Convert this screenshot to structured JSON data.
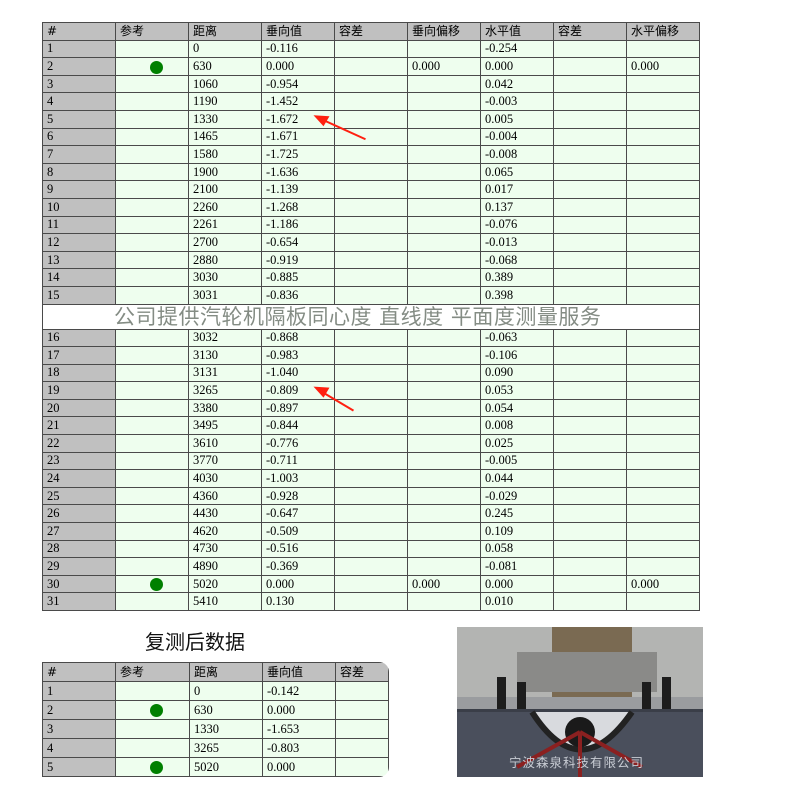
{
  "main_table": {
    "headers": [
      "#",
      "参考",
      "距离",
      "垂向值",
      "容差",
      "垂向偏移",
      "水平值",
      "容差",
      "水平偏移"
    ],
    "rows": [
      {
        "n": "1",
        "ref": false,
        "dist": "0",
        "vert": "-0.116",
        "vtol": "",
        "voff": "",
        "horiz": "-0.254",
        "htol": "",
        "hoff": ""
      },
      {
        "n": "2",
        "ref": true,
        "dist": "630",
        "vert": "0.000",
        "vtol": "",
        "voff": "0.000",
        "horiz": "0.000",
        "htol": "",
        "hoff": "0.000"
      },
      {
        "n": "3",
        "ref": false,
        "dist": "1060",
        "vert": "-0.954",
        "vtol": "",
        "voff": "",
        "horiz": "0.042",
        "htol": "",
        "hoff": ""
      },
      {
        "n": "4",
        "ref": false,
        "dist": "1190",
        "vert": "-1.452",
        "vtol": "",
        "voff": "",
        "horiz": "-0.003",
        "htol": "",
        "hoff": ""
      },
      {
        "n": "5",
        "ref": false,
        "dist": "1330",
        "vert": "-1.672",
        "vtol": "",
        "voff": "",
        "horiz": "0.005",
        "htol": "",
        "hoff": ""
      },
      {
        "n": "6",
        "ref": false,
        "dist": "1465",
        "vert": "-1.671",
        "vtol": "",
        "voff": "",
        "horiz": "-0.004",
        "htol": "",
        "hoff": ""
      },
      {
        "n": "7",
        "ref": false,
        "dist": "1580",
        "vert": "-1.725",
        "vtol": "",
        "voff": "",
        "horiz": "-0.008",
        "htol": "",
        "hoff": ""
      },
      {
        "n": "8",
        "ref": false,
        "dist": "1900",
        "vert": "-1.636",
        "vtol": "",
        "voff": "",
        "horiz": "0.065",
        "htol": "",
        "hoff": ""
      },
      {
        "n": "9",
        "ref": false,
        "dist": "2100",
        "vert": "-1.139",
        "vtol": "",
        "voff": "",
        "horiz": "0.017",
        "htol": "",
        "hoff": ""
      },
      {
        "n": "10",
        "ref": false,
        "dist": "2260",
        "vert": "-1.268",
        "vtol": "",
        "voff": "",
        "horiz": "0.137",
        "htol": "",
        "hoff": ""
      },
      {
        "n": "11",
        "ref": false,
        "dist": "2261",
        "vert": "-1.186",
        "vtol": "",
        "voff": "",
        "horiz": "-0.076",
        "htol": "",
        "hoff": ""
      },
      {
        "n": "12",
        "ref": false,
        "dist": "2700",
        "vert": "-0.654",
        "vtol": "",
        "voff": "",
        "horiz": "-0.013",
        "htol": "",
        "hoff": ""
      },
      {
        "n": "13",
        "ref": false,
        "dist": "2880",
        "vert": "-0.919",
        "vtol": "",
        "voff": "",
        "horiz": "-0.068",
        "htol": "",
        "hoff": ""
      },
      {
        "n": "14",
        "ref": false,
        "dist": "3030",
        "vert": "-0.885",
        "vtol": "",
        "voff": "",
        "horiz": "0.389",
        "htol": "",
        "hoff": ""
      },
      {
        "n": "15",
        "ref": false,
        "dist": "3031",
        "vert": "-0.836",
        "vtol": "",
        "voff": "",
        "horiz": "0.398",
        "htol": "",
        "hoff": ""
      },
      {
        "n": "16",
        "ref": false,
        "dist": "3032",
        "vert": "-0.868",
        "vtol": "",
        "voff": "",
        "horiz": "-0.063",
        "htol": "",
        "hoff": ""
      },
      {
        "n": "17",
        "ref": false,
        "dist": "3130",
        "vert": "-0.983",
        "vtol": "",
        "voff": "",
        "horiz": "-0.106",
        "htol": "",
        "hoff": ""
      },
      {
        "n": "18",
        "ref": false,
        "dist": "3131",
        "vert": "-1.040",
        "vtol": "",
        "voff": "",
        "horiz": "0.090",
        "htol": "",
        "hoff": ""
      },
      {
        "n": "19",
        "ref": false,
        "dist": "3265",
        "vert": "-0.809",
        "vtol": "",
        "voff": "",
        "horiz": "0.053",
        "htol": "",
        "hoff": ""
      },
      {
        "n": "20",
        "ref": false,
        "dist": "3380",
        "vert": "-0.897",
        "vtol": "",
        "voff": "",
        "horiz": "0.054",
        "htol": "",
        "hoff": ""
      },
      {
        "n": "21",
        "ref": false,
        "dist": "3495",
        "vert": "-0.844",
        "vtol": "",
        "voff": "",
        "horiz": "0.008",
        "htol": "",
        "hoff": ""
      },
      {
        "n": "22",
        "ref": false,
        "dist": "3610",
        "vert": "-0.776",
        "vtol": "",
        "voff": "",
        "horiz": "0.025",
        "htol": "",
        "hoff": ""
      },
      {
        "n": "23",
        "ref": false,
        "dist": "3770",
        "vert": "-0.711",
        "vtol": "",
        "voff": "",
        "horiz": "-0.005",
        "htol": "",
        "hoff": ""
      },
      {
        "n": "24",
        "ref": false,
        "dist": "4030",
        "vert": "-1.003",
        "vtol": "",
        "voff": "",
        "horiz": "0.044",
        "htol": "",
        "hoff": ""
      },
      {
        "n": "25",
        "ref": false,
        "dist": "4360",
        "vert": "-0.928",
        "vtol": "",
        "voff": "",
        "horiz": "-0.029",
        "htol": "",
        "hoff": ""
      },
      {
        "n": "26",
        "ref": false,
        "dist": "4430",
        "vert": "-0.647",
        "vtol": "",
        "voff": "",
        "horiz": "0.245",
        "htol": "",
        "hoff": ""
      },
      {
        "n": "27",
        "ref": false,
        "dist": "4620",
        "vert": "-0.509",
        "vtol": "",
        "voff": "",
        "horiz": "0.109",
        "htol": "",
        "hoff": ""
      },
      {
        "n": "28",
        "ref": false,
        "dist": "4730",
        "vert": "-0.516",
        "vtol": "",
        "voff": "",
        "horiz": "0.058",
        "htol": "",
        "hoff": ""
      },
      {
        "n": "29",
        "ref": false,
        "dist": "4890",
        "vert": "-0.369",
        "vtol": "",
        "voff": "",
        "horiz": "-0.081",
        "htol": "",
        "hoff": ""
      },
      {
        "n": "30",
        "ref": true,
        "dist": "5020",
        "vert": "0.000",
        "vtol": "",
        "voff": "0.000",
        "horiz": "0.000",
        "htol": "",
        "hoff": "0.000"
      },
      {
        "n": "31",
        "ref": false,
        "dist": "5410",
        "vert": "0.130",
        "vtol": "",
        "voff": "",
        "horiz": "0.010",
        "htol": "",
        "hoff": ""
      }
    ],
    "highlighted_rows": [
      "5",
      "19"
    ]
  },
  "watermark": "公司提供汽轮机隔板同心度 直线度 平面度测量服务",
  "retest": {
    "title": "复测后数据",
    "headers": [
      "#",
      "参考",
      "距离",
      "垂向值",
      "容差"
    ],
    "rows": [
      {
        "n": "1",
        "ref": false,
        "dist": "0",
        "vert": "-0.142",
        "vtol": ""
      },
      {
        "n": "2",
        "ref": true,
        "dist": "630",
        "vert": "0.000",
        "vtol": ""
      },
      {
        "n": "3",
        "ref": false,
        "dist": "1330",
        "vert": "-1.653",
        "vtol": ""
      },
      {
        "n": "4",
        "ref": false,
        "dist": "3265",
        "vert": "-0.803",
        "vtol": ""
      },
      {
        "n": "5",
        "ref": true,
        "dist": "5020",
        "vert": "0.000",
        "vtol": ""
      }
    ]
  },
  "photo": {
    "caption": "宁波森泉科技有限公司"
  },
  "colors": {
    "cell_bg": "#eefeee",
    "header_bg": "#c0c0c0",
    "reference_dot": "#008000",
    "arrow": "#ff2010"
  }
}
